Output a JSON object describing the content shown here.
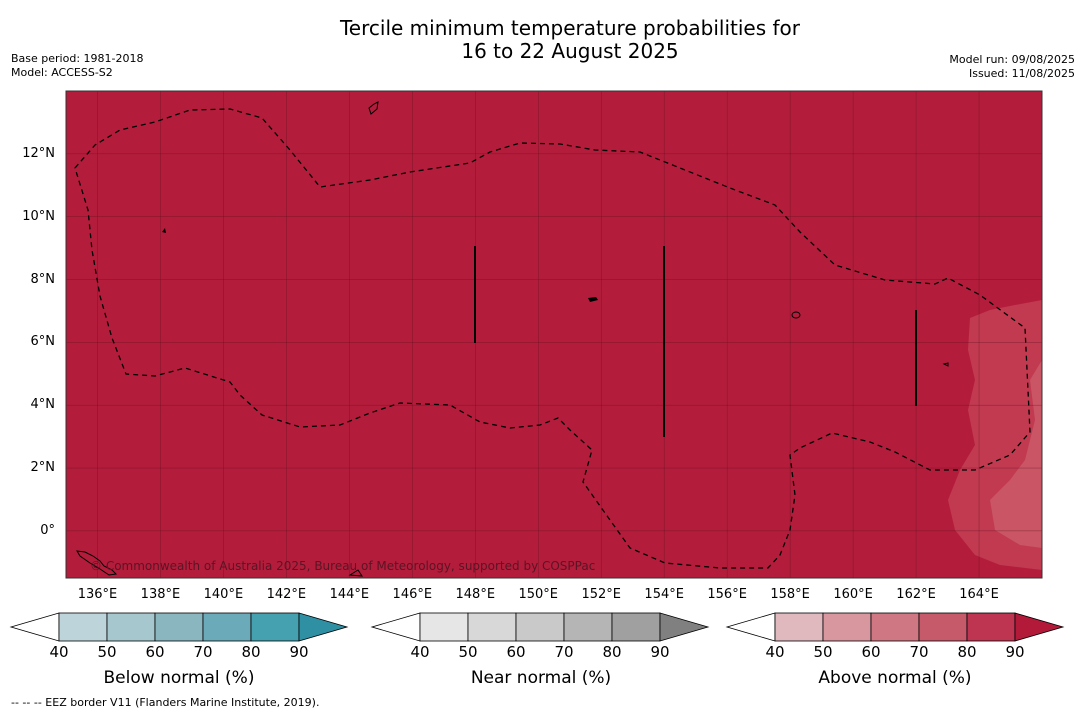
{
  "title": {
    "line1": "Tercile minimum temperature probabilities for",
    "line2": "16 to 22 August 2025"
  },
  "meta": {
    "base_period": "Base period: 1981-2018",
    "model": "Model: ACCESS-S2",
    "model_run": "Model run: 09/08/2025",
    "issued": "Issued: 11/08/2025"
  },
  "map": {
    "fill_color": "#b31d3b",
    "secondary_fill_color": "#c13a50",
    "lat_labels": [
      "12°N",
      "10°N",
      "8°N",
      "6°N",
      "4°N",
      "2°N",
      "0°"
    ],
    "lat_values": [
      12,
      10,
      8,
      6,
      4,
      2,
      0
    ],
    "lon_labels": [
      "136°E",
      "138°E",
      "140°E",
      "142°E",
      "144°E",
      "146°E",
      "148°E",
      "150°E",
      "152°E",
      "154°E",
      "156°E",
      "158°E",
      "160°E",
      "162°E",
      "164°E"
    ],
    "lon_values": [
      136,
      138,
      140,
      142,
      144,
      146,
      148,
      150,
      152,
      154,
      156,
      158,
      160,
      162,
      164
    ],
    "extent": {
      "lon_min": 135.0,
      "lon_max": 166.0,
      "lat_min": -1.5,
      "lat_max": 14.0
    },
    "copyright": "© Commonwealth of Australia 2025, Bureau of Meteorology, supported by COSPPac"
  },
  "colorbars": [
    {
      "name": "below",
      "title": "Below normal (%)",
      "ticks": [
        "40",
        "50",
        "60",
        "70",
        "80",
        "90"
      ],
      "colors": [
        "#bed4db",
        "#a5c7cd",
        "#8ab6c0",
        "#6aaab9",
        "#45a0b0",
        "#2f8fa3"
      ]
    },
    {
      "name": "near",
      "title": "Near normal (%)",
      "ticks": [
        "40",
        "50",
        "60",
        "70",
        "80",
        "90"
      ],
      "colors": [
        "#e6e6e6",
        "#d8d8d8",
        "#c9c9c9",
        "#b5b5b5",
        "#a0a0a0",
        "#808080"
      ]
    },
    {
      "name": "above",
      "title": "Above normal (%)",
      "ticks": [
        "40",
        "50",
        "60",
        "70",
        "80",
        "90"
      ],
      "colors": [
        "#e0b9bf",
        "#d8969e",
        "#cf7884",
        "#c65a6b",
        "#bd3550",
        "#b31a3a"
      ]
    }
  ],
  "footer": "--  --  -- EEZ border V11 (Flanders Marine Institute, 2019)."
}
